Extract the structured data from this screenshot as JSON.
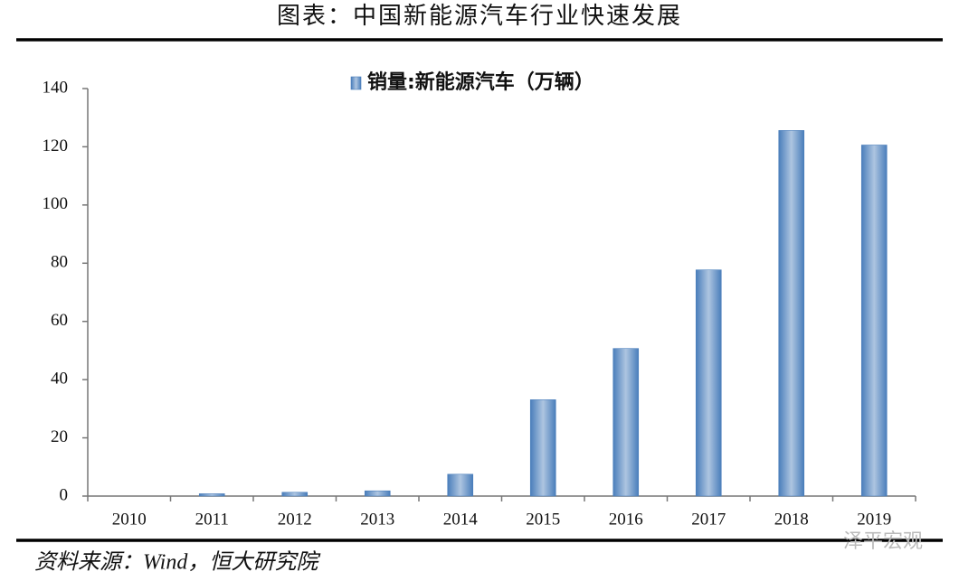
{
  "chart_data": {
    "type": "bar",
    "title": "图表：中国新能源汽车行业快速发展",
    "categories": [
      "2010",
      "2011",
      "2012",
      "2013",
      "2014",
      "2015",
      "2016",
      "2017",
      "2018",
      "2019"
    ],
    "series": [
      {
        "name": "销量:新能源汽车（万辆）",
        "color": "#4a7ebb",
        "values": [
          0,
          0.8,
          1.3,
          1.8,
          7.5,
          33.1,
          50.7,
          77.7,
          125.6,
          120.6
        ]
      }
    ],
    "ylim": [
      0,
      140
    ],
    "yticks": [
      0,
      20,
      40,
      60,
      80,
      100,
      120,
      140
    ],
    "grid": false,
    "legend": "top"
  },
  "source": "资料来源：Wind，恒大研究院",
  "watermark": "泽平宏观"
}
